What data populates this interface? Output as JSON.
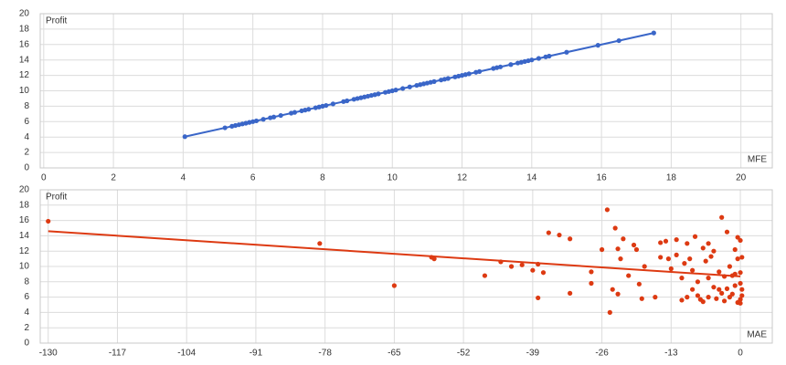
{
  "chart_data": [
    {
      "type": "scatter",
      "y_label": "Profit",
      "x_label": "MFE",
      "color": "#3a66c8",
      "grid": true,
      "xlim": [
        -0.1,
        20.9
      ],
      "ylim": [
        0,
        20
      ],
      "xticks": [
        0,
        2,
        4,
        6,
        8,
        10,
        12,
        14,
        16,
        18,
        20
      ],
      "yticks": [
        0,
        2,
        4,
        6,
        8,
        10,
        12,
        14,
        16,
        18,
        20
      ],
      "x": [
        4.05,
        5.2,
        5.4,
        5.5,
        5.6,
        5.7,
        5.8,
        5.9,
        6.0,
        6.1,
        6.3,
        6.5,
        6.6,
        6.8,
        7.1,
        7.2,
        7.4,
        7.5,
        7.6,
        7.8,
        7.9,
        8.0,
        8.1,
        8.3,
        8.6,
        8.7,
        8.9,
        9.0,
        9.1,
        9.2,
        9.3,
        9.4,
        9.5,
        9.6,
        9.8,
        9.9,
        10.0,
        10.1,
        10.3,
        10.5,
        10.7,
        10.8,
        10.9,
        11.0,
        11.1,
        11.2,
        11.4,
        11.5,
        11.6,
        11.8,
        11.9,
        12.0,
        12.1,
        12.2,
        12.4,
        12.5,
        12.9,
        13.0,
        13.1,
        13.4,
        13.6,
        13.7,
        13.8,
        13.9,
        14.0,
        14.2,
        14.4,
        14.5,
        15.0,
        15.9,
        16.5,
        17.5
      ],
      "values": [
        4.05,
        5.2,
        5.4,
        5.5,
        5.6,
        5.7,
        5.8,
        5.9,
        6.0,
        6.1,
        6.3,
        6.5,
        6.6,
        6.8,
        7.1,
        7.2,
        7.4,
        7.5,
        7.6,
        7.8,
        7.9,
        8.0,
        8.1,
        8.3,
        8.6,
        8.7,
        8.9,
        9.0,
        9.1,
        9.2,
        9.3,
        9.4,
        9.5,
        9.6,
        9.8,
        9.9,
        10.0,
        10.1,
        10.3,
        10.5,
        10.7,
        10.8,
        10.9,
        11.0,
        11.1,
        11.2,
        11.4,
        11.5,
        11.6,
        11.8,
        11.9,
        12.0,
        12.1,
        12.2,
        12.4,
        12.5,
        12.9,
        13.0,
        13.1,
        13.4,
        13.6,
        13.7,
        13.8,
        13.9,
        14.0,
        14.2,
        14.4,
        14.5,
        15.0,
        15.9,
        16.5,
        17.5
      ],
      "trend": {
        "x": [
          4.05,
          17.5
        ],
        "values": [
          4.05,
          17.5
        ]
      }
    },
    {
      "type": "scatter",
      "y_label": "Profit",
      "x_label": "MAE",
      "color": "#dd3a12",
      "grid": true,
      "xlim": [
        -131.5,
        6
      ],
      "ylim": [
        0,
        20
      ],
      "xticks": [
        -130,
        -117,
        -104,
        -91,
        -78,
        -65,
        -52,
        -39,
        -26,
        -13,
        0
      ],
      "yticks": [
        0,
        2,
        4,
        6,
        8,
        10,
        12,
        14,
        16,
        18,
        20
      ],
      "x": [
        -130,
        -79,
        -65,
        -58,
        -57.5,
        -48,
        -45,
        -43,
        -41,
        -39,
        -38,
        -38,
        -37,
        -36,
        -34,
        -32,
        -32,
        -28,
        -28,
        -26,
        -25,
        -24.5,
        -24,
        -23.5,
        -23,
        -23,
        -22.5,
        -22,
        -21,
        -20,
        -19.5,
        -19,
        -18.5,
        -18,
        -16,
        -15,
        -15,
        -14,
        -13.5,
        -13,
        -12,
        -12,
        -11,
        -11,
        -10.5,
        -10,
        -10,
        -9.5,
        -9,
        -9,
        -8.5,
        -8,
        -8,
        -7.5,
        -7,
        -7,
        -6.5,
        -6,
        -6,
        -6,
        -5.5,
        -5,
        -5,
        -4.5,
        -4,
        -4,
        -3.5,
        -3.5,
        -3,
        -3,
        -2.5,
        -2.5,
        -2,
        -2,
        -1.5,
        -1.5,
        -1,
        -1,
        -1,
        -0.5,
        -0.5,
        -0.5,
        0,
        0,
        0,
        0,
        0,
        0.3,
        0.3,
        0.3
      ],
      "values": [
        15.9,
        13,
        7.5,
        11.2,
        11,
        8.8,
        10.6,
        10,
        10.2,
        9.5,
        10.3,
        5.9,
        9.2,
        14.4,
        14.1,
        13.6,
        6.5,
        7.8,
        9.3,
        12.2,
        17.4,
        4,
        7,
        15,
        6.4,
        12.3,
        11,
        13.6,
        8.8,
        12.8,
        12.2,
        7.7,
        5.8,
        10,
        6,
        13.1,
        11.2,
        13.3,
        11,
        9.7,
        13.5,
        11.5,
        5.6,
        8.5,
        10.4,
        13,
        6,
        11,
        9.5,
        7,
        13.9,
        8,
        6.2,
        5.7,
        12.4,
        5.4,
        10.7,
        13,
        8.5,
        6,
        11.3,
        7.3,
        12,
        5.8,
        9.3,
        7,
        16.4,
        6.5,
        8.7,
        5.5,
        14.5,
        7.1,
        10,
        6,
        8.8,
        6.4,
        12.2,
        9,
        7.5,
        13.8,
        11,
        5.3,
        13.4,
        9.2,
        7.8,
        5.7,
        5.2,
        11.2,
        7,
        6.2
      ],
      "trend": {
        "x": [
          -130,
          0
        ],
        "values": [
          14.6,
          8.7
        ]
      }
    }
  ]
}
